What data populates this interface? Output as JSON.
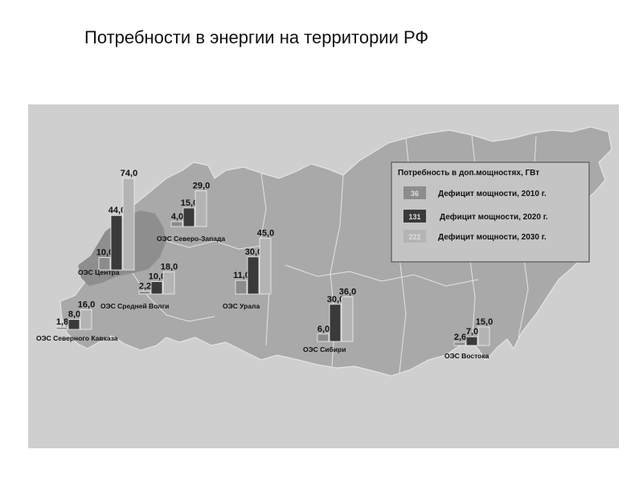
{
  "page": {
    "title": "Потребности в энергии на территории РФ"
  },
  "colors": {
    "s2010": "#8c8c8c",
    "s2020": "#3a3a3a",
    "s2030": "#b4b4b4",
    "map_bg": "#cfcfcf",
    "land": "#a9a9a9",
    "dark_land": "#8e8e8e"
  },
  "chart_data": {
    "type": "bar",
    "categories": [
      "ОЭС Центра",
      "ОЭС Северо-Запада",
      "ОЭС Средней Волги",
      "ОЭС Северного Кавказа",
      "ОЭС Урала",
      "ОЭС Сибири",
      "ОЭС Востока"
    ],
    "series": [
      {
        "name": "Дефицит мощности, 2010 г.",
        "values": [
          "10,0",
          "4,0",
          "2,2",
          "1,8",
          "11,0",
          "6,0",
          "2,6"
        ]
      },
      {
        "name": "Дефицит мощности, 2020 г.",
        "values": [
          "44,0",
          "15,0",
          "10,0",
          "8,0",
          "30,0",
          "30,0",
          "7,0"
        ]
      },
      {
        "name": "Дефицит мощности, 2030 г.",
        "values": [
          "74,0",
          "29,0",
          "18,0",
          "16,0",
          "45,0",
          "36,0",
          "15,0"
        ]
      }
    ],
    "legend": {
      "title": "Потребность в доп.мощностях, ГВт",
      "swatch_numbers": [
        "36",
        "131",
        "222"
      ],
      "position": "top-right"
    }
  }
}
